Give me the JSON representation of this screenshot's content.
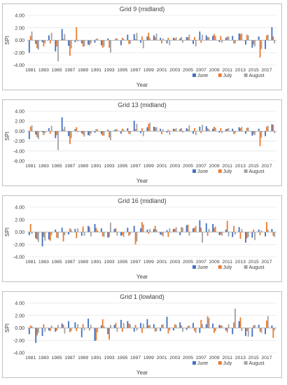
{
  "colors": {
    "June": "#4472c4",
    "July": "#ed7d31",
    "August": "#a5a5a5"
  },
  "chart_data": [
    {
      "type": "bar",
      "title": "Grid 9 (midland)",
      "xlabel": "Year",
      "ylabel": "SPI",
      "ylim": [
        -4,
        4
      ],
      "yticks": [
        "4.00",
        "2.00",
        "0.00",
        "-2.00",
        "-4.00"
      ],
      "legend": "bottom-right",
      "categories": [
        1981,
        1982,
        1983,
        1984,
        1985,
        1986,
        1987,
        1988,
        1989,
        1990,
        1991,
        1992,
        1993,
        1994,
        1995,
        1996,
        1997,
        1998,
        1999,
        2000,
        2001,
        2002,
        2003,
        2004,
        2005,
        2006,
        2007,
        2008,
        2009,
        2010,
        2011,
        2012,
        2013,
        2014,
        2015,
        2016,
        2017,
        2018
      ],
      "xtick_labels": [
        "1981",
        "1983",
        "1985",
        "1987",
        "1989",
        "1991",
        "1993",
        "1995",
        "1997",
        "1999",
        "2001",
        "2003",
        "2005",
        "2007",
        "2009",
        "2011",
        "2013",
        "2015",
        "2017"
      ],
      "series": [
        {
          "name": "June",
          "values": [
            -2.0,
            -0.6,
            -0.3,
            0.8,
            -1.8,
            1.8,
            -0.9,
            -0.3,
            -0.5,
            -0.7,
            -0.4,
            -0.8,
            0.3,
            0.0,
            -0.8,
            0.9,
            1.0,
            -0.4,
            0.6,
            0.8,
            0.4,
            -0.5,
            0.4,
            0.3,
            0.5,
            -0.6,
            1.4,
            0.8,
            0.7,
            -0.3,
            0.4,
            0.7,
            1.1,
            -0.7,
            -1.2,
            0.6,
            -1.4,
            2.1
          ]
        },
        {
          "name": "July",
          "values": [
            0.7,
            -1.3,
            -1.0,
            -0.5,
            -1.0,
            0.2,
            -2.5,
            2.1,
            -1.0,
            -0.8,
            0.2,
            -1.2,
            -1.2,
            0.3,
            0.4,
            -0.6,
            0.2,
            0.6,
            1.2,
            0.5,
            -0.5,
            0.4,
            0.3,
            0.5,
            0.5,
            0.5,
            -0.4,
            0.5,
            1.0,
            0.7,
            0.6,
            -0.5,
            1.0,
            0.9,
            -0.7,
            -2.8,
            0.8,
            0.6
          ]
        },
        {
          "name": "August",
          "values": [
            1.4,
            -1.5,
            -0.5,
            1.2,
            -3.4,
            1.0,
            -1.3,
            -0.2,
            -1.0,
            -0.5,
            0.3,
            -1.0,
            -2.0,
            0.3,
            0.2,
            -0.6,
            1.2,
            -1.3,
            0.4,
            1.1,
            0.3,
            -0.8,
            0.5,
            -0.4,
            0.9,
            -1.0,
            0.9,
            0.5,
            0.7,
            -0.4,
            0.6,
            -0.5,
            1.1,
            0.8,
            -1.0,
            -1.4,
            0.9,
            -0.5
          ]
        }
      ]
    },
    {
      "type": "bar",
      "title": "Grid 13 (midland)",
      "xlabel": "Year",
      "ylabel": "SPI",
      "ylim": [
        -6,
        4
      ],
      "yticks": [
        "4.00",
        "2.00",
        "0.00",
        "-2.00",
        "-4.00",
        "-6.00"
      ],
      "legend": "bottom-right",
      "categories": [
        1981,
        1982,
        1983,
        1984,
        1985,
        1986,
        1987,
        1988,
        1989,
        1990,
        1991,
        1992,
        1993,
        1994,
        1995,
        1996,
        1997,
        1998,
        1999,
        2000,
        2001,
        2002,
        2003,
        2004,
        2005,
        2006,
        2007,
        2008,
        2009,
        2010,
        2011,
        2012,
        2013,
        2014,
        2015,
        2016,
        2017,
        2018
      ],
      "xtick_labels": [
        "1981",
        "1983",
        "1985",
        "1987",
        "1989",
        "1991",
        "1993",
        "1995",
        "1997",
        "1999",
        "2001",
        "2003",
        "2005",
        "2007",
        "2009",
        "2011",
        "2013",
        "2015",
        "2017"
      ],
      "series": [
        {
          "name": "June",
          "values": [
            -1.6,
            -0.7,
            -0.2,
            0.6,
            -1.4,
            2.8,
            -1.0,
            0.4,
            -0.4,
            -0.8,
            -0.3,
            -0.6,
            0.3,
            0.2,
            -0.5,
            0.6,
            2.1,
            -0.4,
            0.8,
            0.9,
            0.5,
            -0.3,
            0.5,
            0.4,
            0.6,
            -0.5,
            0.9,
            1.0,
            0.5,
            -0.3,
            0.4,
            0.5,
            0.8,
            -0.5,
            -0.9,
            0.5,
            -1.0,
            1.4
          ]
        },
        {
          "name": "July",
          "values": [
            0.9,
            -1.2,
            -0.8,
            -0.5,
            -0.8,
            0.3,
            -2.6,
            0.8,
            -0.7,
            -0.9,
            0.4,
            -0.9,
            -1.3,
            0.4,
            0.5,
            -0.5,
            0.4,
            0.6,
            1.5,
            0.8,
            -0.6,
            0.3,
            0.4,
            0.6,
            0.4,
            0.6,
            -0.4,
            0.6,
            0.9,
            0.6,
            0.5,
            -0.6,
            0.6,
            0.7,
            -0.6,
            -3.0,
            0.9,
            1.3
          ]
        },
        {
          "name": "August",
          "values": [
            1.2,
            -1.6,
            -0.4,
            1.1,
            -3.8,
            0.9,
            -1.4,
            -0.2,
            -1.1,
            -0.5,
            0.4,
            -0.9,
            -1.8,
            0.4,
            0.3,
            -0.6,
            1.5,
            -1.0,
            1.7,
            0.8,
            0.4,
            -0.7,
            0.6,
            -0.3,
            1.2,
            -0.8,
            1.3,
            0.4,
            0.7,
            -0.4,
            0.6,
            -0.4,
            0.9,
            0.7,
            -0.8,
            -1.3,
            1.1,
            -0.4
          ]
        }
      ]
    },
    {
      "type": "bar",
      "title": "Grid 16 (midland)",
      "xlabel": "Year",
      "ylabel": "SPI",
      "ylim": [
        -4,
        4
      ],
      "yticks": [
        "4.00",
        "2.00",
        "0.00",
        "-2.00",
        "-4.00"
      ],
      "legend": "bottom-right",
      "categories": [
        1981,
        1982,
        1983,
        1984,
        1985,
        1986,
        1987,
        1988,
        1989,
        1990,
        1991,
        1992,
        1993,
        1994,
        1995,
        1996,
        1997,
        1998,
        1999,
        2000,
        2001,
        2002,
        2003,
        2004,
        2005,
        2006,
        2007,
        2008,
        2009,
        2010,
        2011,
        2012,
        2013,
        2014,
        2015,
        2016,
        2017,
        2018
      ],
      "xtick_labels": [
        "1981",
        "1983",
        "1985",
        "1987",
        "1989",
        "1991",
        "1993",
        "1995",
        "1997",
        "1999",
        "2001",
        "2003",
        "2005",
        "2007",
        "2009",
        "2011",
        "2013",
        "2015",
        "2017"
      ],
      "series": [
        {
          "name": "June",
          "values": [
            -0.5,
            -1.0,
            -2.3,
            -1.2,
            0.4,
            0.7,
            -0.4,
            0.5,
            -0.6,
            1.0,
            1.3,
            0.6,
            -0.9,
            0.5,
            -0.6,
            0.7,
            1.0,
            0.6,
            0.4,
            0.5,
            -0.4,
            0.3,
            0.5,
            -0.5,
            1.1,
            0.6,
            1.9,
            1.4,
            1.3,
            -0.5,
            0.4,
            -0.8,
            0.8,
            -1.7,
            -0.9,
            0.4,
            -0.7,
            0.5
          ]
        },
        {
          "name": "July",
          "values": [
            1.3,
            -1.2,
            -0.8,
            -1.4,
            -0.9,
            -1.5,
            0.6,
            -1.0,
            0.9,
            0.8,
            0.7,
            -0.7,
            -0.8,
            0.6,
            -0.5,
            -0.6,
            -2.0,
            1.6,
            -0.3,
            1.0,
            -0.5,
            -0.8,
            0.5,
            0.8,
            1.2,
            0.7,
            0.7,
            -0.6,
            0.7,
            -0.4,
            1.8,
            1.0,
            -1.1,
            -1.0,
            0.4,
            -0.5,
            1.6,
            -0.6
          ]
        },
        {
          "name": "August",
          "values": [
            -0.3,
            -1.6,
            -1.4,
            -0.5,
            -1.0,
            -0.5,
            0.4,
            0.6,
            -0.6,
            -0.7,
            0.3,
            -0.8,
            1.5,
            -0.6,
            -0.8,
            -0.4,
            -1.5,
            1.2,
            0.5,
            0.4,
            -0.7,
            0.6,
            0.8,
            0.7,
            -0.6,
            1.0,
            -1.7,
            0.5,
            0.9,
            -0.6,
            -0.7,
            -0.4,
            0.5,
            -0.8,
            -1.3,
            0.3,
            0.4,
            -0.8
          ]
        }
      ]
    },
    {
      "type": "bar",
      "title": "Grid 1 (lowland)",
      "xlabel": "Year",
      "ylabel": "SPI",
      "ylim": [
        -4,
        4
      ],
      "yticks": [
        "4.00",
        "2.00",
        "0.00",
        "-2.00",
        "-4.00"
      ],
      "legend": "bottom-right",
      "categories": [
        1981,
        1982,
        1983,
        1984,
        1985,
        1986,
        1987,
        1988,
        1989,
        1990,
        1991,
        1992,
        1993,
        1994,
        1995,
        1996,
        1997,
        1998,
        1999,
        2000,
        2001,
        2002,
        2003,
        2004,
        2005,
        2006,
        2007,
        2008,
        2009,
        2010,
        2011,
        2012,
        2013,
        2014,
        2015,
        2016,
        2017,
        2018
      ],
      "xtick_labels": [
        "1981",
        "1983",
        "1985",
        "1987",
        "1989",
        "1991",
        "1993",
        "1995",
        "1997",
        "1999",
        "2001",
        "2003",
        "2005",
        "2007",
        "2009",
        "2011",
        "2013",
        "2015",
        "2017"
      ],
      "series": [
        {
          "name": "June",
          "values": [
            -1.0,
            -2.4,
            -1.3,
            -0.4,
            -0.6,
            0.7,
            1.1,
            0.9,
            -1.5,
            1.5,
            -2.1,
            0.4,
            -1.0,
            0.5,
            1.3,
            1.1,
            -0.6,
            0.8,
            1.4,
            0.6,
            -0.5,
            1.8,
            -0.4,
            0.9,
            -0.3,
            0.8,
            -0.8,
            0.6,
            0.7,
            0.5,
            -0.4,
            -1.0,
            1.1,
            -1.3,
            -1.4,
            0.5,
            -1.0,
            0.4
          ]
        },
        {
          "name": "July",
          "values": [
            0.4,
            -1.2,
            0.6,
            -0.5,
            -0.4,
            0.5,
            -0.7,
            -0.5,
            0.6,
            -0.4,
            -2.0,
            1.4,
            -1.9,
            0.8,
            -0.6,
            0.7,
            0.5,
            -0.8,
            0.4,
            -0.6,
            0.5,
            -0.9,
            0.6,
            0.4,
            0.3,
            -0.5,
            1.3,
            1.9,
            -0.8,
            0.4,
            -0.7,
            0.9,
            1.7,
            -0.5,
            0.4,
            -0.6,
            1.2,
            -1.6
          ]
        },
        {
          "name": "August",
          "values": [
            0.3,
            -0.8,
            -0.6,
            0.4,
            0.5,
            -0.9,
            -0.5,
            0.6,
            -0.4,
            0.5,
            -0.7,
            0.3,
            0.5,
            -0.6,
            0.8,
            0.6,
            -0.4,
            0.7,
            0.5,
            -0.5,
            0.6,
            -0.4,
            0.5,
            -0.6,
            0.4,
            -0.8,
            0.6,
            1.6,
            -0.5,
            0.4,
            0.6,
            3.1,
            -0.5,
            -1.4,
            0.5,
            -0.8,
            1.9,
            -0.4
          ]
        }
      ]
    }
  ]
}
